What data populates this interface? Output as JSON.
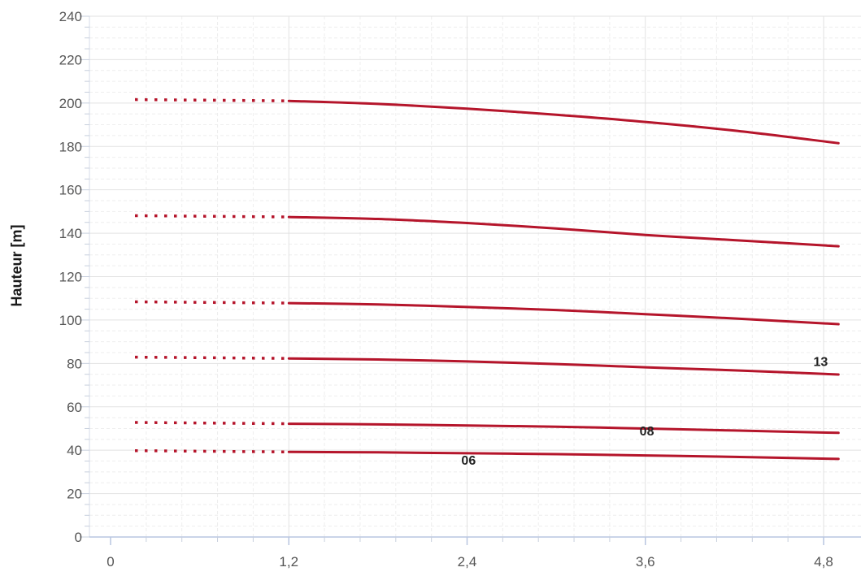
{
  "chart_data": {
    "type": "line",
    "ylabel": "Hauteur [m]",
    "xlabel": "",
    "xlim": [
      -0.2,
      4.9
    ],
    "ylim": [
      0,
      240
    ],
    "x_ticks": [
      0,
      1.2,
      2.4,
      3.6,
      4.8
    ],
    "x_tick_labels": [
      "0",
      "1,2",
      "2,4",
      "3,6",
      "4,8"
    ],
    "y_ticks": [
      0,
      20,
      40,
      60,
      80,
      100,
      120,
      140,
      160,
      180,
      200,
      220,
      240
    ],
    "y_tick_labels": [
      "0",
      "20",
      "40",
      "60",
      "80",
      "100",
      "120",
      "140",
      "160",
      "180",
      "200",
      "220",
      "240"
    ],
    "grid": true,
    "line_color": "#b5152b",
    "dotted_range": [
      0,
      1.2
    ],
    "series": [
      {
        "x": [
          1.2,
          1.8,
          2.4,
          3.0,
          3.6,
          4.2,
          4.9
        ],
        "values": [
          39.2,
          39.0,
          38.6,
          38.2,
          37.6,
          36.9,
          36.0
        ]
      },
      {
        "x": [
          1.2,
          1.8,
          2.4,
          3.0,
          3.6,
          4.2,
          4.9
        ],
        "values": [
          52.2,
          51.9,
          51.4,
          50.8,
          50.0,
          49.1,
          48.0
        ]
      },
      {
        "x": [
          1.2,
          1.8,
          2.4,
          3.0,
          3.6,
          4.2,
          4.9
        ],
        "values": [
          82.3,
          81.8,
          80.9,
          79.7,
          78.2,
          76.8,
          74.9
        ]
      },
      {
        "x": [
          1.2,
          1.8,
          2.4,
          3.0,
          3.6,
          4.2,
          4.9
        ],
        "values": [
          107.8,
          107.2,
          106.0,
          104.6,
          102.7,
          100.7,
          98.1
        ]
      },
      {
        "x": [
          1.2,
          1.8,
          2.4,
          3.0,
          3.6,
          4.2,
          4.9
        ],
        "values": [
          147.5,
          146.6,
          144.7,
          142.2,
          139.2,
          136.8,
          134.0
        ]
      },
      {
        "x": [
          1.2,
          1.8,
          2.4,
          3.0,
          3.6,
          4.2,
          4.9
        ],
        "values": [
          201.0,
          199.6,
          197.4,
          194.6,
          191.3,
          187.3,
          181.5
        ]
      }
    ],
    "annotations": [
      {
        "text": "06",
        "x": 2.41,
        "y": 35.6
      },
      {
        "text": "08",
        "x": 3.61,
        "y": 49.0
      },
      {
        "text": "13",
        "x": 4.78,
        "y": 81.0
      }
    ]
  }
}
